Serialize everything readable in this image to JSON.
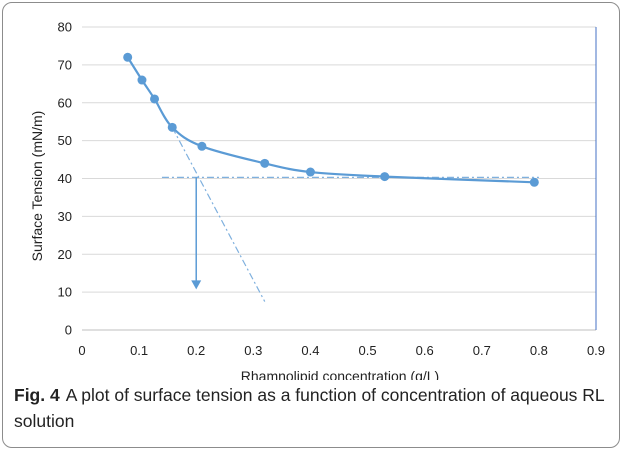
{
  "chart_data": {
    "type": "line",
    "xlabel": "Rhamnolipid concentration (g/L)",
    "ylabel": "Surface Tension (mN/m)",
    "xlim": [
      0,
      0.9
    ],
    "ylim": [
      0,
      80
    ],
    "xticks": [
      "0",
      "0.1",
      "0.2",
      "0.3",
      "0.4",
      "0.5",
      "0.6",
      "0.7",
      "0.8",
      "0.9"
    ],
    "yticks": [
      "0",
      "10",
      "20",
      "30",
      "40",
      "50",
      "60",
      "70",
      "80"
    ],
    "grid": "horizontal",
    "series": [
      {
        "x": [
          0.08,
          0.105,
          0.127,
          0.158,
          0.21,
          0.32,
          0.4,
          0.53,
          0.792
        ],
        "y": [
          72,
          66,
          61,
          53.5,
          48.5,
          44,
          41.7,
          40.5,
          39
        ],
        "color": "#5b9bd5"
      }
    ],
    "annotations": {
      "horizontal_tangent": {
        "x": [
          0.14,
          0.8
        ],
        "y": [
          40.3,
          40.3
        ]
      },
      "steep_tangent": {
        "x": [
          0.158,
          0.32
        ],
        "y": [
          53.5,
          7.5
        ]
      },
      "cmc_arrow": {
        "x": 0.2,
        "y_from": 40.3,
        "y_to": 11
      }
    }
  },
  "caption": {
    "label": "Fig. 4",
    "text": "A plot of surface tension as a function of concentration of aqueous RL solution"
  }
}
